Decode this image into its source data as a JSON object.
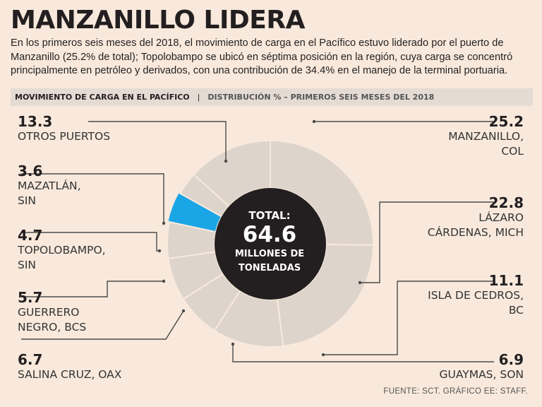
{
  "headline": "MANZANILLO LIDERA",
  "intro": "En los primeros seis meses del 2018, el movimiento de carga en el Pacífico estuvo liderado por el puerto de Manzanillo (25.2% de total); Topolobampo se ubicó en séptima posición en la región, cuya carga se concentró principalmente en petróleo y derivados, con una contribución de 34.4% en el manejo de la terminal portuaria.",
  "bar": {
    "title": "MOVIMIENTO DE CARGA EN EL PACÍFICO",
    "separator": "|",
    "subtitle": "DISTRIBUCIÓN % – PRIMEROS SEIS MESES DEL 2018"
  },
  "center": {
    "line1": "TOTAL:",
    "line2": "64.6",
    "line3": "MILLONES DE\nTONELADAS"
  },
  "source": "FUENTE: SCT. GRÁFICO EE: STAFF.",
  "colors": {
    "background": "#f8e9dc",
    "segment": "#ddd4cb",
    "segment_border": "#f8e9dc",
    "highlight": "#1aa6e6",
    "center": "#231f20",
    "leader": "#4a4a4a"
  },
  "chart_data": {
    "type": "pie",
    "title": "MOVIMIENTO DE CARGA EN EL PACÍFICO",
    "subtitle": "DISTRIBUCIÓN % – PRIMEROS SEIS MESES DEL 2018",
    "unit": "%",
    "total": "64.6",
    "slices": [
      {
        "value": 25.2,
        "value_text": "25.2",
        "label": "MANZANILLO,\nCOL"
      },
      {
        "value": 22.8,
        "value_text": "22.8",
        "label": "LÁZARO\nCÁRDENAS, MICH"
      },
      {
        "value": 11.1,
        "value_text": "11.1",
        "label": "ISLA DE CEDROS,\nBC"
      },
      {
        "value": 6.9,
        "value_text": "6.9",
        "label": "GUAYMAS, SON"
      },
      {
        "value": 6.7,
        "value_text": "6.7",
        "label": "SALINA CRUZ, OAX"
      },
      {
        "value": 5.7,
        "value_text": "5.7",
        "label": "GUERRERO\nNEGRO, BCS"
      },
      {
        "value": 4.7,
        "value_text": "4.7",
        "label": "TOPOLOBAMPO,\nSIN",
        "highlight": true
      },
      {
        "value": 3.6,
        "value_text": "3.6",
        "label": "MAZATLÁN,\nSIN"
      },
      {
        "value": 13.3,
        "value_text": "13.3",
        "label": "OTROS PUERTOS"
      }
    ]
  }
}
